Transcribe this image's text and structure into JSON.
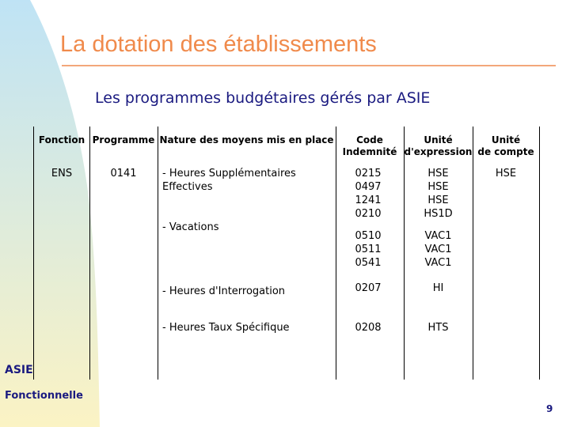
{
  "slide": {
    "title": "La dotation des établissements",
    "subtitle": "Les programmes budgétaires gérés par ASIE",
    "footer_brand": "ASIE",
    "footer_subtitle": "Fonctionnelle",
    "page_number": "9",
    "colors": {
      "title": "#f08a4b",
      "rule": "#f3a77a",
      "text_blue": "#1a1a80",
      "gradient_top": "#bfe3f5",
      "gradient_bottom": "#fbf3c4"
    }
  },
  "table": {
    "headers": {
      "fonction": "Fonction",
      "programme": "Programme",
      "nature": "Nature des moyens mis en place",
      "code_l1": "Code",
      "code_l2": "Indemnité",
      "unite_expr_l1": "Unité",
      "unite_expr_l2": "d'expression",
      "unite_compte_l1": "Unité",
      "unite_compte_l2": "de compte"
    },
    "fonction": "ENS",
    "programme": "0141",
    "unite_compte": "HSE",
    "groups": [
      {
        "nature_l1": "- Heures Supplémentaires",
        "nature_l2": "Effectives",
        "codes": [
          "0215",
          "0497",
          "1241",
          "0210"
        ],
        "units": [
          "HSE",
          "HSE",
          "HSE",
          "HS1D"
        ]
      },
      {
        "nature_l1": "- Vacations",
        "codes": [
          "0510",
          "0511",
          "0541"
        ],
        "units": [
          "VAC1",
          "VAC1",
          "VAC1"
        ]
      },
      {
        "nature_l1": "- Heures d'Interrogation",
        "codes": [
          "0207"
        ],
        "units": [
          "HI"
        ]
      },
      {
        "nature_l1": "- Heures Taux Spécifique",
        "codes": [
          "0208"
        ],
        "units": [
          "HTS"
        ]
      }
    ]
  }
}
